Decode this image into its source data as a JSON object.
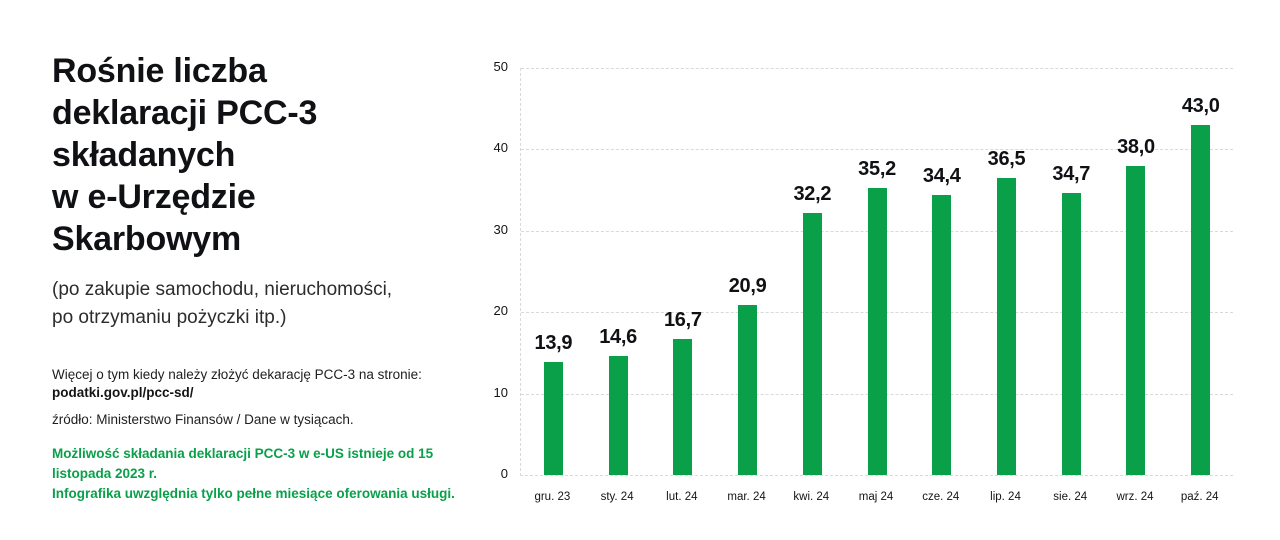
{
  "colors": {
    "accent_green": "#0aa04a",
    "grid": "#d9d9d9",
    "text": "#101114",
    "background": "#ffffff"
  },
  "left_panel": {
    "title_lines": [
      "Rośnie liczba",
      "deklaracji PCC-3",
      "składanych",
      "w e-Urzędzie",
      "Skarbowym"
    ],
    "subtitle_lines": [
      "(po zakupie samochodu, nieruchomości,",
      "po otrzymaniu pożyczki itp.)"
    ],
    "more_info": "Więcej o tym kiedy należy złożyć dekarację PCC-3 na stronie:",
    "link": "podatki.gov.pl/pcc-sd/",
    "source": "źródło: Ministerstwo Finansów / Dane w tysiącach.",
    "note_lines": [
      "Możliwość składania deklaracji PCC-3 w e-US istnieje od 15 listopada 2023 r.",
      "Infografika uwzględnia tylko pełne miesiące oferowania usługi."
    ]
  },
  "chart_data": {
    "type": "bar",
    "title": "Rośnie liczba deklaracji PCC-3 składanych w e-Urzędzie Skarbowym",
    "xlabel": "",
    "ylabel": "",
    "unit_note": "Dane w tysiącach",
    "categories": [
      "gru. 23",
      "sty. 24",
      "lut. 24",
      "mar. 24",
      "kwi. 24",
      "maj 24",
      "cze. 24",
      "lip. 24",
      "sie. 24",
      "wrz. 24",
      "paź. 24"
    ],
    "values": [
      13.9,
      14.6,
      16.7,
      20.9,
      32.2,
      35.2,
      34.4,
      36.5,
      34.7,
      38.0,
      43.0
    ],
    "value_labels": [
      "13,9",
      "14,6",
      "16,7",
      "20,9",
      "32,2",
      "35,2",
      "34,4",
      "36,5",
      "34,7",
      "38,0",
      "43,0"
    ],
    "y_ticks": [
      0,
      10,
      20,
      30,
      40,
      50
    ],
    "ylim": [
      0,
      50
    ],
    "grid": true,
    "legend": false,
    "bar_color": "#0aa04a"
  }
}
